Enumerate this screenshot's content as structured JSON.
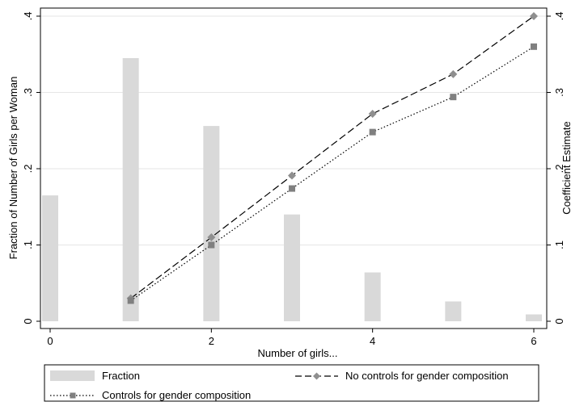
{
  "chart_data": {
    "type": "bar+line",
    "x": [
      0,
      1,
      2,
      3,
      4,
      5,
      6
    ],
    "xlabel": "Number of girls...",
    "xticks": [
      "0",
      "2",
      "4",
      "6"
    ],
    "xlim": [
      0,
      6
    ],
    "left_axis": {
      "label": "Fraction of Number of Girls per Woman",
      "ylim": [
        0,
        0.4
      ],
      "ticks": [
        "0",
        ".1",
        ".2",
        ".3",
        ".4"
      ]
    },
    "right_axis": {
      "label": "Coefficient Estimate",
      "ylim": [
        0,
        0.4
      ],
      "ticks": [
        "0",
        ".1",
        ".2",
        ".3",
        ".4"
      ]
    },
    "grid": "horizontal",
    "legend_position": "bottom",
    "series": [
      {
        "name": "Fraction",
        "kind": "bar",
        "axis": "left",
        "color": "#d9d9d9",
        "x": [
          0,
          1,
          2,
          3,
          4,
          5,
          6
        ],
        "values": [
          0.165,
          0.345,
          0.256,
          0.14,
          0.064,
          0.026,
          0.009
        ]
      },
      {
        "name": "No controls for gender composition",
        "kind": "line",
        "axis": "right",
        "style": "dashed",
        "marker": "diamond",
        "color": "#8f8f8f",
        "x": [
          1,
          2,
          3,
          4,
          5,
          6
        ],
        "values": [
          0.03,
          0.11,
          0.191,
          0.272,
          0.324,
          0.4
        ]
      },
      {
        "name": "Controls for gender composition",
        "kind": "line",
        "axis": "right",
        "style": "dotted",
        "marker": "square",
        "color": "#808080",
        "x": [
          1,
          2,
          3,
          4,
          5,
          6
        ],
        "values": [
          0.027,
          0.1,
          0.174,
          0.248,
          0.294,
          0.36
        ]
      }
    ]
  }
}
